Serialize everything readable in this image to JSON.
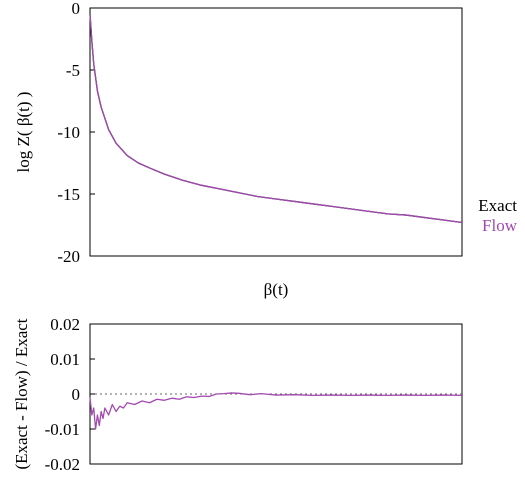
{
  "chart_data": [
    {
      "type": "line",
      "title": "",
      "xlabel": "β(t)",
      "ylabel": "log Z( β(t) )",
      "ylim": [
        -20,
        0
      ],
      "yticks": [
        0,
        -5,
        -10,
        -15,
        -20
      ],
      "ytick_labels": [
        "0",
        "-5",
        "-10",
        "-15",
        "-20"
      ],
      "xlim": [
        0,
        1
      ],
      "xticks_shown": false,
      "grid": false,
      "legend_position": "right",
      "series": [
        {
          "name": "Exact",
          "color": "#000000",
          "x": [
            0.0,
            0.005,
            0.01,
            0.02,
            0.03,
            0.05,
            0.07,
            0.1,
            0.13,
            0.16,
            0.2,
            0.25,
            0.3,
            0.35,
            0.4,
            0.45,
            0.5,
            0.55,
            0.6,
            0.65,
            0.7,
            0.75,
            0.8,
            0.85,
            0.9,
            0.95,
            1.0
          ],
          "y": [
            -0.5,
            -2.7,
            -4.5,
            -6.7,
            -8.0,
            -9.8,
            -10.9,
            -11.9,
            -12.5,
            -12.9,
            -13.4,
            -13.9,
            -14.3,
            -14.6,
            -14.9,
            -15.2,
            -15.4,
            -15.6,
            -15.8,
            -16.0,
            -16.2,
            -16.4,
            -16.6,
            -16.7,
            -16.9,
            -17.1,
            -17.3
          ]
        },
        {
          "name": "Flow",
          "color": "#a24ab0",
          "x": [
            0.0,
            0.005,
            0.01,
            0.02,
            0.03,
            0.05,
            0.07,
            0.1,
            0.13,
            0.16,
            0.2,
            0.25,
            0.3,
            0.35,
            0.4,
            0.45,
            0.5,
            0.55,
            0.6,
            0.65,
            0.7,
            0.75,
            0.8,
            0.85,
            0.9,
            0.95,
            1.0
          ],
          "y": [
            -0.5,
            -2.7,
            -4.5,
            -6.7,
            -8.0,
            -9.8,
            -10.9,
            -11.9,
            -12.5,
            -12.9,
            -13.4,
            -13.9,
            -14.3,
            -14.6,
            -14.9,
            -15.2,
            -15.4,
            -15.6,
            -15.8,
            -16.0,
            -16.2,
            -16.4,
            -16.6,
            -16.7,
            -16.9,
            -17.1,
            -17.3
          ]
        }
      ]
    },
    {
      "type": "line",
      "title": "",
      "xlabel": "",
      "ylabel": "(Exact - Flow) / Exact",
      "ylim": [
        -0.02,
        0.02
      ],
      "yticks": [
        0.02,
        0.01,
        0,
        -0.01,
        -0.02
      ],
      "ytick_labels": [
        "0.02",
        "0.01",
        "0",
        "-0.01",
        "-0.02"
      ],
      "xlim": [
        0,
        1
      ],
      "xticks_shown": false,
      "grid": false,
      "reference_line": {
        "y": 0,
        "style": "dotted"
      },
      "series": [
        {
          "color": "#a24ab0",
          "x": [
            0.0,
            0.005,
            0.01,
            0.015,
            0.02,
            0.025,
            0.03,
            0.035,
            0.04,
            0.05,
            0.06,
            0.07,
            0.08,
            0.09,
            0.1,
            0.12,
            0.14,
            0.16,
            0.18,
            0.2,
            0.22,
            0.24,
            0.26,
            0.28,
            0.3,
            0.32,
            0.34,
            0.36,
            0.38,
            0.4,
            0.43,
            0.46,
            0.5,
            0.55,
            0.6,
            0.65,
            0.7,
            0.75,
            0.8,
            0.85,
            0.9,
            0.95,
            1.0
          ],
          "y": [
            -0.001,
            -0.006,
            -0.004,
            -0.01,
            -0.006,
            -0.009,
            -0.005,
            -0.007,
            -0.004,
            -0.006,
            -0.003,
            -0.005,
            -0.0035,
            -0.004,
            -0.0025,
            -0.003,
            -0.002,
            -0.0025,
            -0.0015,
            -0.0018,
            -0.0012,
            -0.0015,
            -0.0008,
            -0.001,
            -0.0006,
            -0.0007,
            0.0,
            0.0001,
            0.0003,
            0.0002,
            -0.0002,
            0.0001,
            -0.0003,
            -0.0002,
            -0.0004,
            -0.0003,
            -0.0004,
            -0.0003,
            -0.0004,
            -0.0003,
            -0.0004,
            -0.0003,
            -0.0004
          ]
        }
      ]
    }
  ]
}
